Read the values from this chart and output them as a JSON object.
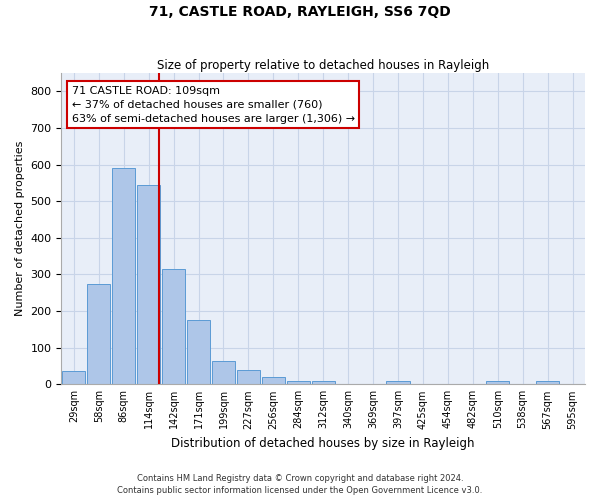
{
  "title": "71, CASTLE ROAD, RAYLEIGH, SS6 7QD",
  "subtitle": "Size of property relative to detached houses in Rayleigh",
  "xlabel": "Distribution of detached houses by size in Rayleigh",
  "ylabel": "Number of detached properties",
  "footnote1": "Contains HM Land Registry data © Crown copyright and database right 2024.",
  "footnote2": "Contains public sector information licensed under the Open Government Licence v3.0.",
  "bar_labels": [
    "29sqm",
    "58sqm",
    "86sqm",
    "114sqm",
    "142sqm",
    "171sqm",
    "199sqm",
    "227sqm",
    "256sqm",
    "284sqm",
    "312sqm",
    "340sqm",
    "369sqm",
    "397sqm",
    "425sqm",
    "454sqm",
    "482sqm",
    "510sqm",
    "538sqm",
    "567sqm",
    "595sqm"
  ],
  "bar_values": [
    35,
    275,
    590,
    545,
    315,
    175,
    65,
    40,
    20,
    10,
    10,
    0,
    0,
    10,
    0,
    0,
    0,
    10,
    0,
    10,
    0
  ],
  "bar_color": "#aec6e8",
  "bar_edge_color": "#5b9bd5",
  "grid_color": "#c8d4e8",
  "background_color": "#e8eef8",
  "annotation_line1": "71 CASTLE ROAD: 109sqm",
  "annotation_line2": "← 37% of detached houses are smaller (760)",
  "annotation_line3": "63% of semi-detached houses are larger (1,306) →",
  "annotation_box_color": "#ffffff",
  "annotation_box_edge": "#cc0000",
  "vline_color": "#cc0000",
  "vline_x_data": 3.42,
  "ylim": [
    0,
    850
  ],
  "yticks": [
    0,
    100,
    200,
    300,
    400,
    500,
    600,
    700,
    800
  ]
}
